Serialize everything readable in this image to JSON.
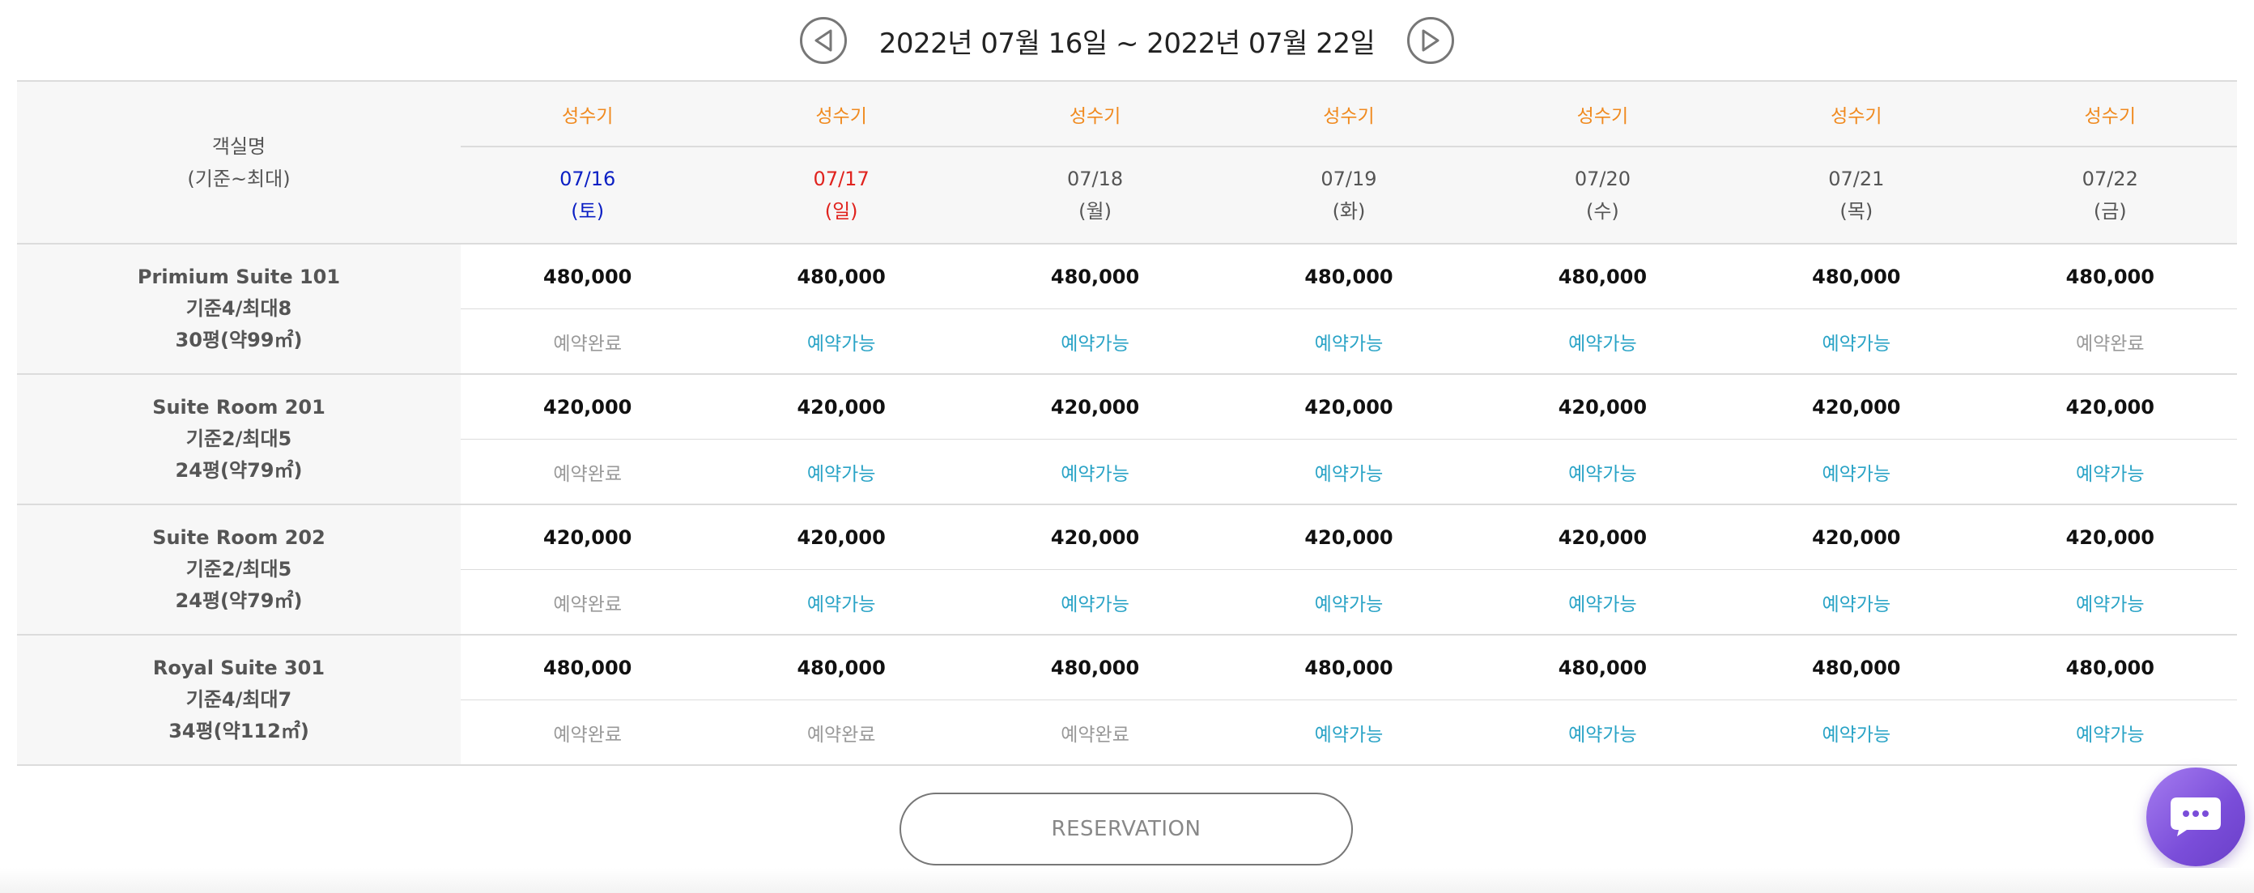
{
  "nav": {
    "range": "2022년 07월 16일 ~ 2022년 07월 22일",
    "prev_icon": "prev-triangle-icon",
    "next_icon": "next-triangle-icon"
  },
  "header": {
    "room_label": "객실명",
    "room_sub": "(기준~최대)",
    "season": [
      "성수기",
      "성수기",
      "성수기",
      "성수기",
      "성수기",
      "성수기",
      "성수기"
    ],
    "dates": [
      {
        "date": "07/16",
        "day": "(토)"
      },
      {
        "date": "07/17",
        "day": "(일)"
      },
      {
        "date": "07/18",
        "day": "(월)"
      },
      {
        "date": "07/19",
        "day": "(화)"
      },
      {
        "date": "07/20",
        "day": "(수)"
      },
      {
        "date": "07/21",
        "day": "(목)"
      },
      {
        "date": "07/22",
        "day": "(금)"
      }
    ]
  },
  "rooms": [
    {
      "name": "Primium Suite 101",
      "capacity": "기준4/최대8",
      "size": "30평(약99㎡)",
      "prices": [
        "480,000",
        "480,000",
        "480,000",
        "480,000",
        "480,000",
        "480,000",
        "480,000"
      ],
      "status": [
        "예약완료",
        "예약가능",
        "예약가능",
        "예약가능",
        "예약가능",
        "예약가능",
        "예약완료"
      ]
    },
    {
      "name": "Suite Room 201",
      "capacity": "기준2/최대5",
      "size": "24평(약79㎡)",
      "prices": [
        "420,000",
        "420,000",
        "420,000",
        "420,000",
        "420,000",
        "420,000",
        "420,000"
      ],
      "status": [
        "예약완료",
        "예약가능",
        "예약가능",
        "예약가능",
        "예약가능",
        "예약가능",
        "예약가능"
      ]
    },
    {
      "name": "Suite Room 202",
      "capacity": "기준2/최대5",
      "size": "24평(약79㎡)",
      "prices": [
        "420,000",
        "420,000",
        "420,000",
        "420,000",
        "420,000",
        "420,000",
        "420,000"
      ],
      "status": [
        "예약완료",
        "예약가능",
        "예약가능",
        "예약가능",
        "예약가능",
        "예약가능",
        "예약가능"
      ]
    },
    {
      "name": "Royal Suite 301",
      "capacity": "기준4/최대7",
      "size": "34평(약112㎡)",
      "prices": [
        "480,000",
        "480,000",
        "480,000",
        "480,000",
        "480,000",
        "480,000",
        "480,000"
      ],
      "status": [
        "예약완료",
        "예약완료",
        "예약완료",
        "예약가능",
        "예약가능",
        "예약가능",
        "예약가능"
      ]
    }
  ],
  "reserve_label": "RESERVATION",
  "colors": {
    "season": "#f08a1f",
    "saturday": "#0b1fc4",
    "sunday": "#e0231e",
    "available": "#29a3c6",
    "booked": "#999999",
    "chat_button": "#7a4dd9"
  },
  "chat_icon": "chat-bubble-icon"
}
